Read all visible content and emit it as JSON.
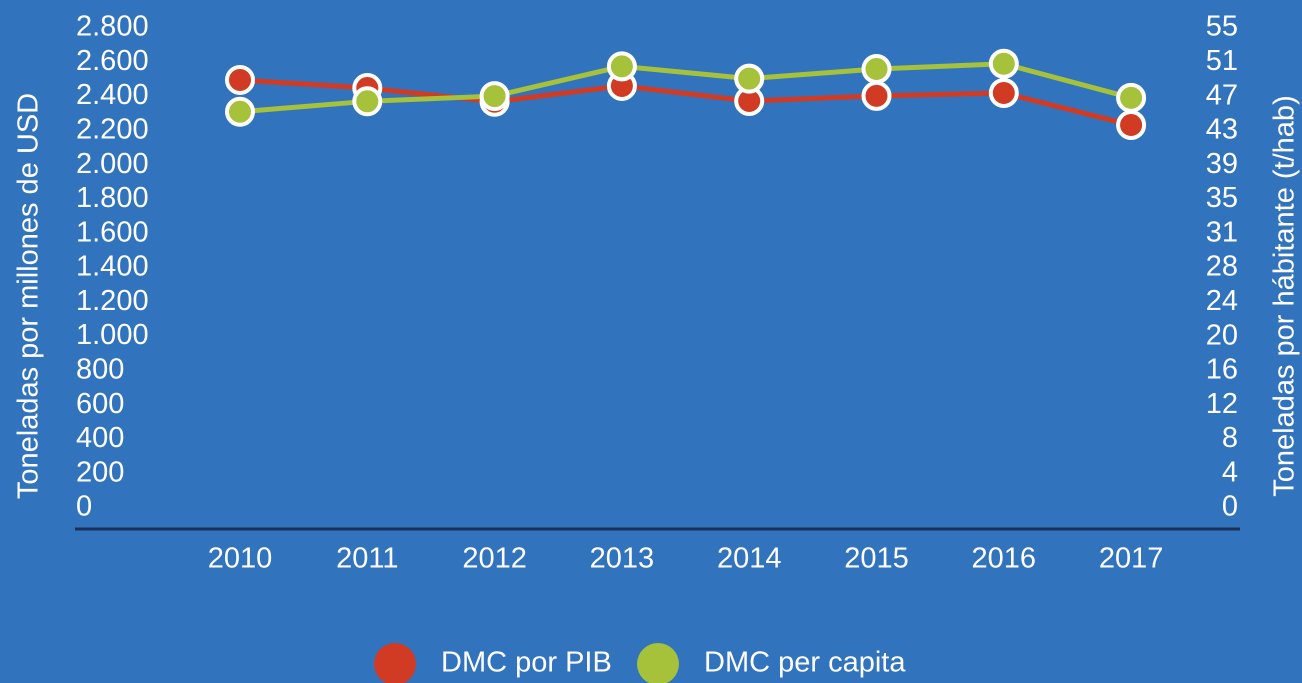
{
  "chart_data": {
    "type": "line",
    "categories": [
      "2010",
      "2011",
      "2012",
      "2013",
      "2014",
      "2015",
      "2016",
      "2017"
    ],
    "y_label": "Toneladas por millones de USD",
    "y2_label": "Toneladas por hábitante (t/hab)",
    "series": [
      {
        "name": "DMC por PIB",
        "color": "#d13b23",
        "values": [
          2497,
          2450,
          2370,
          2462,
          2374,
          2404,
          2421,
          2234
        ]
      },
      {
        "name": "DMC per capita",
        "color": "#a6c13a",
        "axis": "y2",
        "values": [
          45.4,
          46.6,
          47.2,
          50.6,
          49.2,
          50.3,
          50.9,
          47.0
        ]
      }
    ],
    "ylim": [
      0,
      2800
    ],
    "yticks": [
      0,
      200,
      400,
      600,
      800,
      {
        "value": 1000,
        "label": "1.000"
      },
      {
        "value": 1200,
        "label": "1.200"
      },
      {
        "value": 1400,
        "label": "1.400"
      },
      {
        "value": 1600,
        "label": "1.600"
      },
      {
        "value": 1800,
        "label": "1.800"
      },
      {
        "value": 2000,
        "label": "2.000"
      },
      {
        "value": 2200,
        "label": "2.200"
      },
      {
        "value": 2400,
        "label": "2.400"
      },
      {
        "value": 2600,
        "label": "2.600"
      },
      {
        "value": 2800,
        "label": "2.800"
      }
    ],
    "y2lim": [
      0,
      55
    ],
    "y2ticks": [
      0,
      {
        "value": 3.93,
        "label": "4"
      },
      {
        "value": 7.86,
        "label": "8"
      },
      {
        "value": 11.79,
        "label": "12"
      },
      {
        "value": 15.71,
        "label": "16"
      },
      {
        "value": 19.64,
        "label": "20"
      },
      {
        "value": 23.57,
        "label": "24"
      },
      {
        "value": 27.5,
        "label": "28"
      },
      {
        "value": 31.43,
        "label": "31"
      },
      {
        "value": 35.36,
        "label": "35"
      },
      {
        "value": 39.29,
        "label": "39"
      },
      {
        "value": 43.21,
        "label": "43"
      },
      {
        "value": 47.14,
        "label": "47"
      },
      {
        "value": 51.07,
        "label": "51"
      },
      55
    ],
    "legend": "bottom"
  }
}
